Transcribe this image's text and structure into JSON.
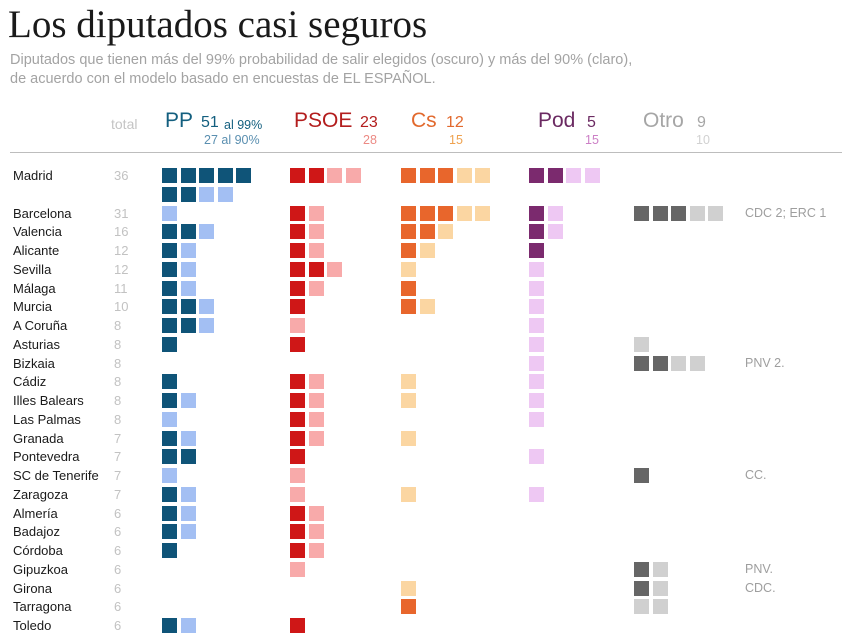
{
  "title": "Los diputados casi seguros",
  "subtitle_line1": "Diputados que tienen más del 99% probabilidad de salir elegidos (oscuro) y más del 90% (claro),",
  "subtitle_line2": "de acuerdo con el modelo basado en encuestas de EL ESPAÑOL.",
  "total_header": "total",
  "parties": [
    {
      "key": "pp",
      "name": "PP",
      "total99": "51",
      "label99": "al 99%",
      "total90": "27 al 90%",
      "color_name": "#135f7f",
      "color_sub": "#5a8fb0",
      "color_dark": "#0f5478",
      "color_light": "#a3bff3"
    },
    {
      "key": "psoe",
      "name": "PSOE",
      "total99": "23",
      "total90": "28",
      "color_name": "#b31d1d",
      "color_sub": "#ec8a84",
      "color_dark": "#cf1717",
      "color_light": "#f8aaaa"
    },
    {
      "key": "cs",
      "name": "Cs",
      "total99": "12",
      "total90": "15",
      "color_name": "#e2692d",
      "color_sub": "#efa24f",
      "color_dark": "#e8662c",
      "color_light": "#fbd6a2"
    },
    {
      "key": "pod",
      "name": "Pod",
      "total99": "5",
      "total90": "15",
      "color_name": "#6b2a62",
      "color_sub": "#cc7fc6",
      "color_dark": "#7b2a6e",
      "color_light": "#eec8f3"
    },
    {
      "key": "otro",
      "name": "Otro",
      "total99": "9",
      "total90": "10",
      "color_name": "#a6a6a6",
      "color_sub": "#d1d1d1",
      "color_dark": "#666666",
      "color_light": "#d0d0d0"
    }
  ],
  "chart_data": {
    "type": "table",
    "title": "Los diputados casi seguros",
    "columns": [
      "total",
      "PP",
      "PSOE",
      "Cs",
      "Pod",
      "Otro"
    ],
    "encoding": {
      "dark": "probabilidad > 99%",
      "light": "probabilidad > 90%"
    },
    "rows": [
      {
        "provincia": "Madrid",
        "total": 36,
        "pp": [
          7,
          2
        ],
        "psoe": [
          2,
          2
        ],
        "cs": [
          3,
          2
        ],
        "pod": [
          2,
          2
        ],
        "otro": [
          0,
          0
        ],
        "note": ""
      },
      {
        "provincia": "Barcelona",
        "total": 31,
        "pp": [
          0,
          1
        ],
        "psoe": [
          1,
          1
        ],
        "cs": [
          3,
          2
        ],
        "pod": [
          1,
          1
        ],
        "otro": [
          3,
          2
        ],
        "note": "CDC 2; ERC 1"
      },
      {
        "provincia": "Valencia",
        "total": 16,
        "pp": [
          2,
          1
        ],
        "psoe": [
          1,
          1
        ],
        "cs": [
          2,
          1
        ],
        "pod": [
          1,
          1
        ],
        "otro": [
          0,
          0
        ],
        "note": ""
      },
      {
        "provincia": "Alicante",
        "total": 12,
        "pp": [
          1,
          1
        ],
        "psoe": [
          1,
          1
        ],
        "cs": [
          1,
          1
        ],
        "pod": [
          1,
          0
        ],
        "otro": [
          0,
          0
        ],
        "note": ""
      },
      {
        "provincia": "Sevilla",
        "total": 12,
        "pp": [
          1,
          1
        ],
        "psoe": [
          2,
          1
        ],
        "cs": [
          0,
          1
        ],
        "pod": [
          0,
          1
        ],
        "otro": [
          0,
          0
        ],
        "note": ""
      },
      {
        "provincia": "Málaga",
        "total": 11,
        "pp": [
          1,
          1
        ],
        "psoe": [
          1,
          1
        ],
        "cs": [
          1,
          0
        ],
        "pod": [
          0,
          1
        ],
        "otro": [
          0,
          0
        ],
        "note": ""
      },
      {
        "provincia": "Murcia",
        "total": 10,
        "pp": [
          2,
          1
        ],
        "psoe": [
          1,
          0
        ],
        "cs": [
          1,
          1
        ],
        "pod": [
          0,
          1
        ],
        "otro": [
          0,
          0
        ],
        "note": ""
      },
      {
        "provincia": "A Coruña",
        "total": 8,
        "pp": [
          2,
          1
        ],
        "psoe": [
          0,
          1
        ],
        "cs": [
          0,
          0
        ],
        "pod": [
          0,
          1
        ],
        "otro": [
          0,
          0
        ],
        "note": ""
      },
      {
        "provincia": "Asturias",
        "total": 8,
        "pp": [
          1,
          0
        ],
        "psoe": [
          1,
          0
        ],
        "cs": [
          0,
          0
        ],
        "pod": [
          0,
          1
        ],
        "otro": [
          0,
          1
        ],
        "note": ""
      },
      {
        "provincia": "Bizkaia",
        "total": 8,
        "pp": [
          0,
          0
        ],
        "psoe": [
          0,
          0
        ],
        "cs": [
          0,
          0
        ],
        "pod": [
          0,
          1
        ],
        "otro": [
          2,
          2
        ],
        "note": "PNV 2."
      },
      {
        "provincia": "Cádiz",
        "total": 8,
        "pp": [
          1,
          0
        ],
        "psoe": [
          1,
          1
        ],
        "cs": [
          0,
          1
        ],
        "pod": [
          0,
          1
        ],
        "otro": [
          0,
          0
        ],
        "note": ""
      },
      {
        "provincia": "Illes Balears",
        "total": 8,
        "pp": [
          1,
          1
        ],
        "psoe": [
          1,
          1
        ],
        "cs": [
          0,
          1
        ],
        "pod": [
          0,
          1
        ],
        "otro": [
          0,
          0
        ],
        "note": ""
      },
      {
        "provincia": "Las Palmas",
        "total": 8,
        "pp": [
          0,
          1
        ],
        "psoe": [
          1,
          1
        ],
        "cs": [
          0,
          0
        ],
        "pod": [
          0,
          1
        ],
        "otro": [
          0,
          0
        ],
        "note": ""
      },
      {
        "provincia": "Granada",
        "total": 7,
        "pp": [
          1,
          1
        ],
        "psoe": [
          1,
          1
        ],
        "cs": [
          0,
          1
        ],
        "pod": [
          0,
          0
        ],
        "otro": [
          0,
          0
        ],
        "note": ""
      },
      {
        "provincia": "Pontevedra",
        "total": 7,
        "pp": [
          2,
          0
        ],
        "psoe": [
          1,
          0
        ],
        "cs": [
          0,
          0
        ],
        "pod": [
          0,
          1
        ],
        "otro": [
          0,
          0
        ],
        "note": ""
      },
      {
        "provincia": "SC de Tenerife",
        "total": 7,
        "pp": [
          0,
          1
        ],
        "psoe": [
          0,
          1
        ],
        "cs": [
          0,
          0
        ],
        "pod": [
          0,
          0
        ],
        "otro": [
          1,
          0
        ],
        "note": "CC."
      },
      {
        "provincia": "Zaragoza",
        "total": 7,
        "pp": [
          1,
          1
        ],
        "psoe": [
          0,
          1
        ],
        "cs": [
          0,
          1
        ],
        "pod": [
          0,
          1
        ],
        "otro": [
          0,
          0
        ],
        "note": ""
      },
      {
        "provincia": "Almería",
        "total": 6,
        "pp": [
          1,
          1
        ],
        "psoe": [
          1,
          1
        ],
        "cs": [
          0,
          0
        ],
        "pod": [
          0,
          0
        ],
        "otro": [
          0,
          0
        ],
        "note": ""
      },
      {
        "provincia": "Badajoz",
        "total": 6,
        "pp": [
          1,
          1
        ],
        "psoe": [
          1,
          1
        ],
        "cs": [
          0,
          0
        ],
        "pod": [
          0,
          0
        ],
        "otro": [
          0,
          0
        ],
        "note": ""
      },
      {
        "provincia": "Córdoba",
        "total": 6,
        "pp": [
          1,
          0
        ],
        "psoe": [
          1,
          1
        ],
        "cs": [
          0,
          0
        ],
        "pod": [
          0,
          0
        ],
        "otro": [
          0,
          0
        ],
        "note": ""
      },
      {
        "provincia": "Gipuzkoa",
        "total": 6,
        "pp": [
          0,
          0
        ],
        "psoe": [
          0,
          1
        ],
        "cs": [
          0,
          0
        ],
        "pod": [
          0,
          0
        ],
        "otro": [
          1,
          1
        ],
        "note": "PNV."
      },
      {
        "provincia": "Girona",
        "total": 6,
        "pp": [
          0,
          0
        ],
        "psoe": [
          0,
          0
        ],
        "cs": [
          0,
          1
        ],
        "pod": [
          0,
          0
        ],
        "otro": [
          1,
          1
        ],
        "note": "CDC."
      },
      {
        "provincia": "Tarragona",
        "total": 6,
        "pp": [
          0,
          0
        ],
        "psoe": [
          0,
          0
        ],
        "cs": [
          1,
          0
        ],
        "pod": [
          0,
          0
        ],
        "otro": [
          0,
          2
        ],
        "note": ""
      },
      {
        "provincia": "Toledo",
        "total": 6,
        "pp": [
          1,
          1
        ],
        "psoe": [
          1,
          0
        ],
        "cs": [
          0,
          0
        ],
        "pod": [
          0,
          0
        ],
        "otro": [
          0,
          0
        ],
        "note": ""
      }
    ]
  }
}
